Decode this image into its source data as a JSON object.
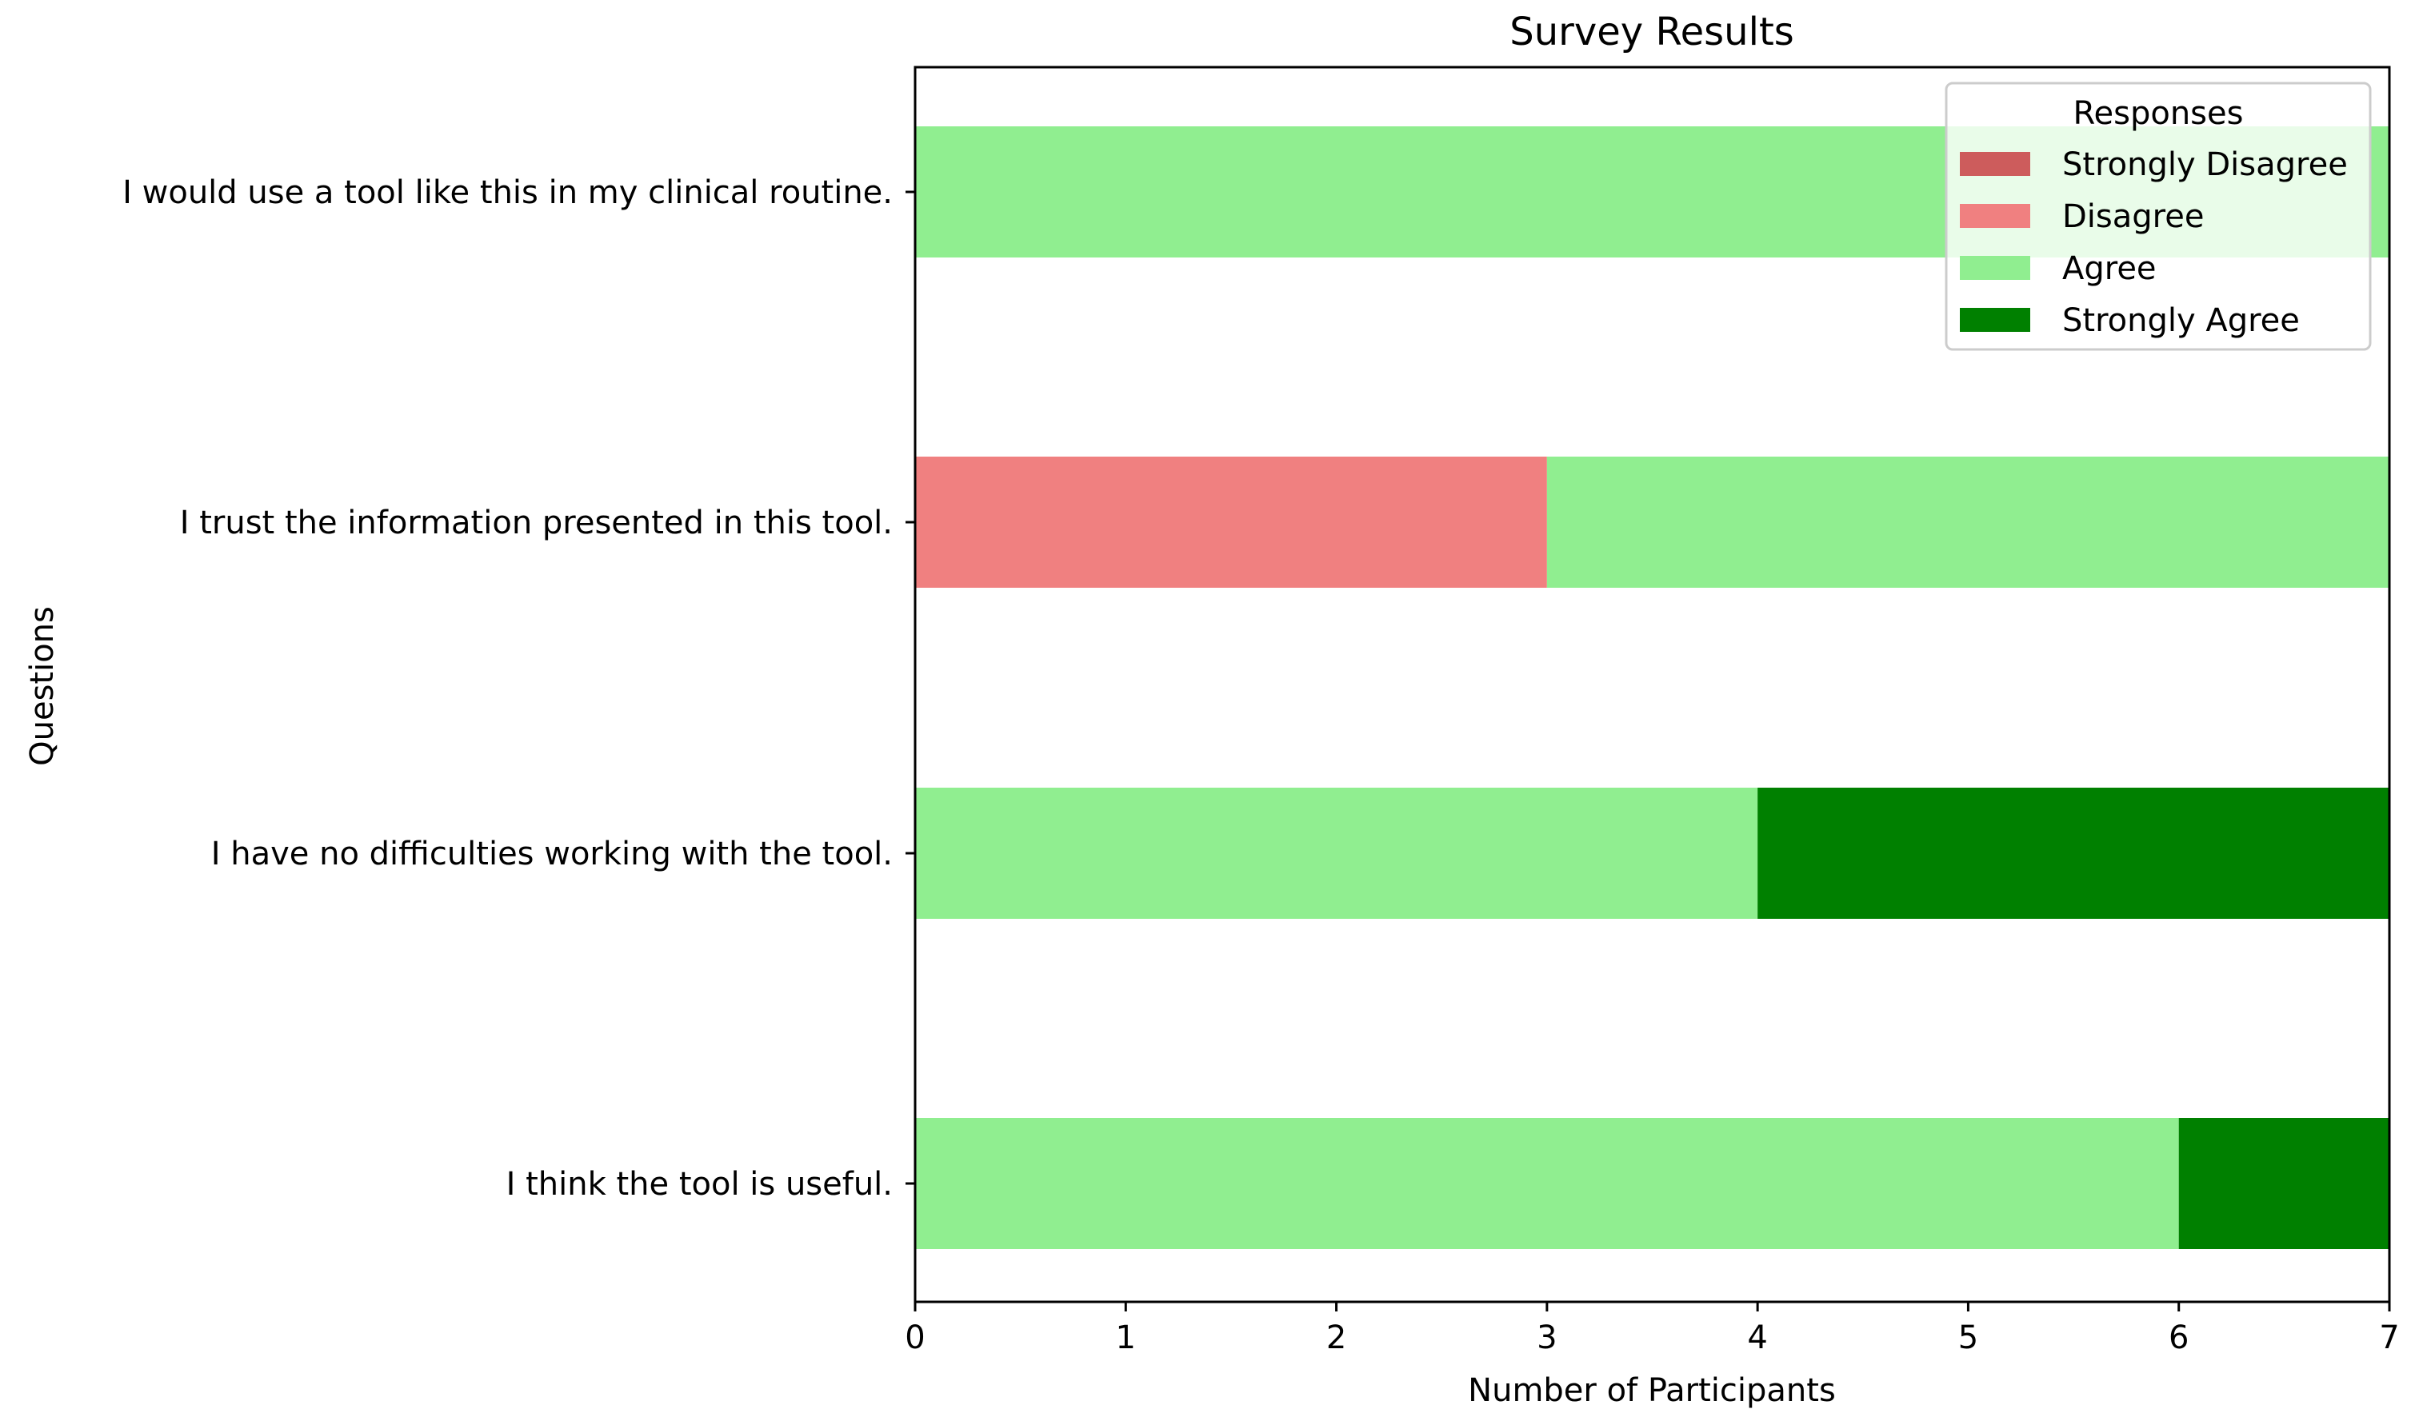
{
  "chart_data": {
    "type": "bar",
    "orientation": "horizontal",
    "stacked": true,
    "title": "Survey Results",
    "xlabel": "Number of Participants",
    "ylabel": "Questions",
    "xlim": [
      0,
      7
    ],
    "xticks": [
      "0",
      "1",
      "2",
      "3",
      "4",
      "5",
      "6",
      "7"
    ],
    "grid": false,
    "legend_position": "top-right",
    "legend_title": "Responses",
    "categories": [
      "I would use a tool like this in my clinical routine.",
      "I trust the information presented in this tool.",
      "I have no difficulties working with the tool.",
      "I think the tool is useful."
    ],
    "series": [
      {
        "name": "Strongly Disagree",
        "color": "#cd5c5c",
        "values": [
          0,
          0,
          0,
          0
        ]
      },
      {
        "name": "Disagree",
        "color": "#f08080",
        "values": [
          0,
          3,
          0,
          0
        ]
      },
      {
        "name": "Agree",
        "color": "#90ee90",
        "values": [
          7,
          4,
          4,
          6
        ]
      },
      {
        "name": "Strongly Agree",
        "color": "#008000",
        "values": [
          0,
          0,
          3,
          1
        ]
      }
    ]
  }
}
